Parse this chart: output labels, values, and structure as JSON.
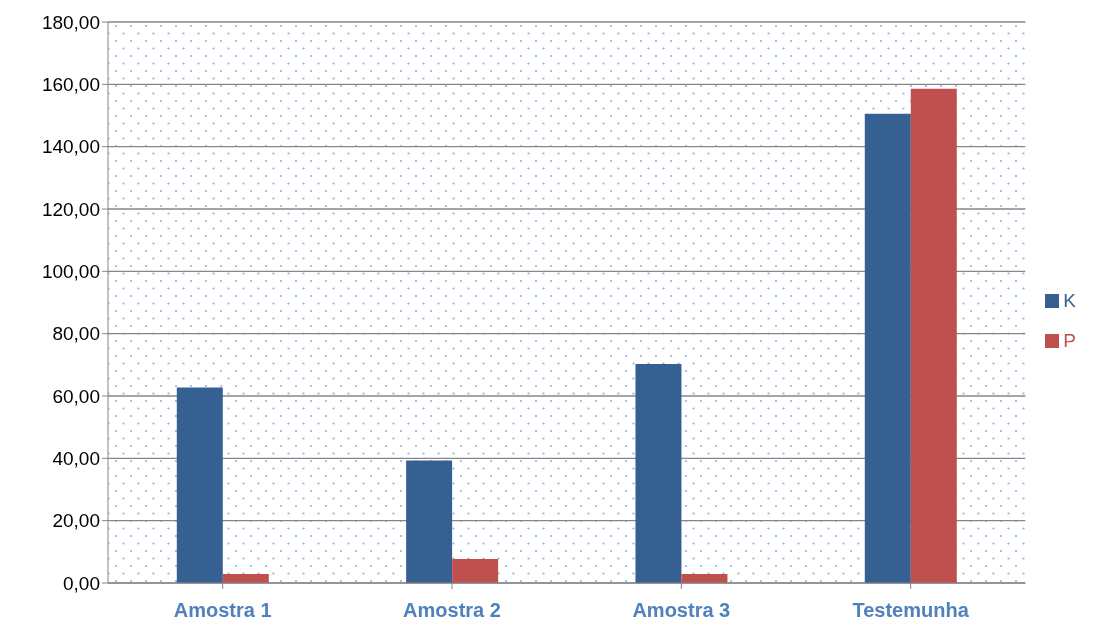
{
  "chart_data": {
    "type": "bar",
    "categories": [
      "Amostra 1",
      "Amostra 2",
      "Amostra 3",
      "Testemunha"
    ],
    "series": [
      {
        "name": "K",
        "color": "#376092",
        "values": [
          62.7,
          39.3,
          70.3,
          150.6
        ]
      },
      {
        "name": "P",
        "color": "#c0504d",
        "values": [
          2.9,
          7.7,
          2.9,
          158.6
        ]
      }
    ],
    "ylim": [
      0,
      180
    ],
    "yticks": [
      {
        "value": 0,
        "label": "0,00"
      },
      {
        "value": 20,
        "label": "20,00"
      },
      {
        "value": 40,
        "label": "40,00"
      },
      {
        "value": 60,
        "label": "60,00"
      },
      {
        "value": 80,
        "label": "80,00"
      },
      {
        "value": 100,
        "label": "100,00"
      },
      {
        "value": 120,
        "label": "120,00"
      },
      {
        "value": 140,
        "label": "140,00"
      },
      {
        "value": 160,
        "label": "160,00"
      },
      {
        "value": 180,
        "label": "180,00"
      }
    ],
    "grid": "y",
    "legend": "right"
  }
}
